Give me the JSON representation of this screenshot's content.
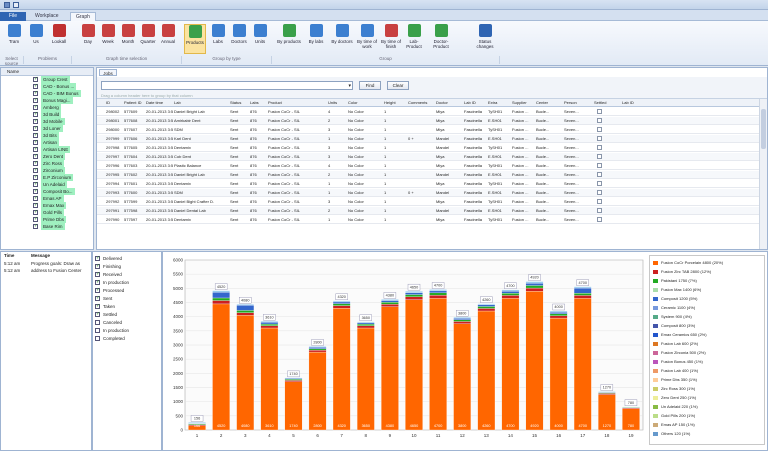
{
  "ribbon": {
    "tabs": [
      "File",
      "Workplace",
      "Graph"
    ],
    "buttons": [
      {
        "label": "Tram",
        "color": "#3c7fd0"
      },
      {
        "label": "Us",
        "color": "#3c7fd0"
      },
      {
        "label": "Lookall",
        "color": "#c03030"
      },
      {
        "label": "Day",
        "color": "#c84040"
      },
      {
        "label": "Week",
        "color": "#c84040"
      },
      {
        "label": "Month",
        "color": "#c84040"
      },
      {
        "label": "Quarter",
        "color": "#c84040"
      },
      {
        "label": "Annual",
        "color": "#c84040"
      },
      {
        "label": "Products",
        "color": "#3aa04a"
      },
      {
        "label": "Labs",
        "color": "#3c7fd0"
      },
      {
        "label": "Doctors",
        "color": "#3c7fd0"
      },
      {
        "label": "Units",
        "color": "#3c7fd0"
      },
      {
        "label": "By products",
        "color": "#3aa04a"
      },
      {
        "label": "By labs",
        "color": "#3c7fd0"
      },
      {
        "label": "By doctors",
        "color": "#3c7fd0"
      },
      {
        "label": "By time of work",
        "color": "#3c7fd0"
      },
      {
        "label": "By time of finish",
        "color": "#c84040"
      },
      {
        "label": "Lab-Product",
        "color": "#3aa04a"
      },
      {
        "label": "Doctor-Product",
        "color": "#3aa04a"
      },
      {
        "label": "Status changes",
        "color": "#2f65b3"
      }
    ],
    "groups": [
      "Select source",
      "Problems",
      "Graph time selection",
      "Group by type",
      "Group"
    ]
  },
  "tree": {
    "header": "Name",
    "items": [
      "Group Crest",
      "CAD - Bonus ...",
      "CAD - BIM Bonus",
      "Bonus Magi...",
      "Amberg",
      "3d Build",
      "3d Mobile",
      "3d Loner",
      "3d Bits",
      "Artisan",
      "Artisan LINE",
      "Zero Dent",
      "Zirc Ross",
      "Zirconium",
      "E.P Zirconium",
      "Un Adelaid",
      "Composit Bo...",
      "Emas AP",
      "Emax Max",
      "Gold Pills",
      "Prime Dbs",
      "Base Rim"
    ]
  },
  "jobs": {
    "tab": "Jobs",
    "select_placeholder": "",
    "find_label": "Find",
    "clear_label": "Clear",
    "hint": "Drag a column header here to group by that column",
    "columns": [
      "ID",
      "Patient ID",
      "Date time",
      "Lab",
      "Status",
      "Labs",
      "Product",
      "Units",
      "Color",
      "Height",
      "Comments",
      "Doctor",
      "Lab ID",
      "Extra",
      "Supplier",
      "Center",
      "Person",
      "Settled",
      "Lab ID"
    ],
    "rows": [
      [
        "298002",
        "577609",
        "20-01-2013 3:58:05 PM",
        "Daniel Bright Lab",
        "Sent",
        "876",
        "Fusion CoCr - SIL",
        "4",
        "No Color",
        "1",
        "",
        "Miya",
        "Fascinella",
        "TySH01",
        "Fusion ...",
        "Bucle...",
        "Seven..."
      ],
      [
        "298001",
        "577608",
        "20-01-2013 3:58:05 PM",
        "Amirkabir Dent",
        "Sent",
        "876",
        "Fusion CoCr - SIL",
        "2",
        "No Color",
        "1",
        "",
        "Miya",
        "Fascinella",
        "E.SH01",
        "Fusion ...",
        "Bucle...",
        "Seven..."
      ],
      [
        "298000",
        "577607",
        "20-01-2013 3:58:05 PM",
        "SDM",
        "Sent",
        "876",
        "Fusion CoCr - SIL",
        "3",
        "No Color",
        "1",
        "",
        "Miya",
        "Fascinella",
        "TySH01",
        "Fusion ...",
        "Bucle...",
        "Seven..."
      ],
      [
        "297999",
        "577606",
        "20-01-2013 3:58:05 PM",
        "Karl Dent",
        "Sent",
        "876",
        "Fusion CoCr - SIL",
        "1",
        "No Color",
        "1",
        "0 +",
        "Mandel",
        "Fascinella",
        "E.SH01",
        "Fusion ...",
        "Bucle...",
        "Seven..."
      ],
      [
        "297998",
        "577605",
        "20-01-2013 3:58:05 PM",
        "Dentamix",
        "Sent",
        "876",
        "Fusion CoCr - SIL",
        "3",
        "No Color",
        "1",
        "",
        "Mandel",
        "Fascinella",
        "TySH01",
        "Fusion ...",
        "Bucle...",
        "Seven..."
      ],
      [
        "297997",
        "577604",
        "20-01-2013 3:58:05 PM",
        "Cob Dent",
        "Sent",
        "876",
        "Fusion CoCr - SIL",
        "3",
        "No Color",
        "1",
        "",
        "Miya",
        "Fascinella",
        "E.SH01",
        "Fusion ...",
        "Bucle...",
        "Seven..."
      ],
      [
        "297996",
        "577603",
        "20-01-2013 3:58:05 PM",
        "Plastic Balance",
        "Sent",
        "876",
        "Fusion CoCr - SIL",
        "4",
        "No Color",
        "1",
        "",
        "Miya",
        "Fascinella",
        "TySH01",
        "Fusion ...",
        "Bucle...",
        "Seven..."
      ],
      [
        "297995",
        "577602",
        "20-01-2013 3:58:05 PM",
        "Daniel Bright Lab",
        "Sent",
        "876",
        "Fusion CoCr - SIL",
        "2",
        "No Color",
        "1",
        "",
        "Mandel",
        "Fascinella",
        "E.SH01",
        "Fusion ...",
        "Bucle...",
        "Seven..."
      ],
      [
        "297994",
        "577601",
        "20-01-2013 3:58:05 PM",
        "Dentamix",
        "Sent",
        "876",
        "Fusion CoCr - SIL",
        "1",
        "No Color",
        "1",
        "",
        "Miya",
        "Fascinella",
        "TySH01",
        "Fusion ...",
        "Bucle...",
        "Seven..."
      ],
      [
        "297993",
        "577600",
        "20-01-2013 3:58:05 PM",
        "SDM",
        "Sent",
        "876",
        "Fusion CoCr - SIL",
        "1",
        "No Color",
        "1",
        "0 +",
        "Mandel",
        "Fascinella",
        "E.SH01",
        "Fusion ...",
        "Bucle...",
        "Seven..."
      ],
      [
        "297992",
        "577599",
        "20-01-2013 3:58:05 PM",
        "Daniel Bight Crafter D.",
        "Sent",
        "876",
        "Fusion CoCr - SIL",
        "3",
        "No Color",
        "1",
        "",
        "Miya",
        "Fascinella",
        "TySH01",
        "Fusion ...",
        "Bucle...",
        "Seven..."
      ],
      [
        "297991",
        "577598",
        "20-01-2013 3:58:05 PM",
        "Daniel Dental Lab",
        "Sent",
        "876",
        "Fusion CoCr - SIL",
        "2",
        "No Color",
        "1",
        "",
        "Mandel",
        "Fascinella",
        "E.SH01",
        "Fusion ...",
        "Bucle...",
        "Seven..."
      ],
      [
        "297990",
        "577597",
        "20-01-2013 3:58:05 PM",
        "Dentamix",
        "Sent",
        "876",
        "Fusion CoCr - SIL",
        "1",
        "No Color",
        "1",
        "",
        "Miya",
        "Fascinella",
        "TySH01",
        "Fusion ...",
        "Bucle...",
        "Seven..."
      ]
    ]
  },
  "log": {
    "time_header": "Time",
    "message_header": "Message",
    "rows": [
      {
        "time": "5:12 am",
        "message": "Progress goals: Draw as"
      },
      {
        "time": "5:12 am",
        "message": "address to Fusion Center"
      }
    ]
  },
  "filters": [
    "Delivered",
    "Finishing",
    "Received",
    "In production",
    "Processed",
    "Sent",
    "Taken",
    "Settled",
    "Canceled",
    "In production",
    "Completed"
  ],
  "filters_checked": [
    true,
    true,
    true,
    true,
    true,
    true,
    true,
    true,
    false,
    false,
    false
  ],
  "chart_data": {
    "type": "bar",
    "stacked": true,
    "categories": [
      "1",
      "2",
      "3",
      "4",
      "5",
      "6",
      "7",
      "8",
      "9",
      "10",
      "11",
      "12",
      "13",
      "14",
      "15",
      "16",
      "17",
      "18",
      "19"
    ],
    "yticks": [
      "0",
      "500",
      "1000",
      "1500",
      "2000",
      "2500",
      "3000",
      "3500",
      "4000",
      "4500",
      "5000",
      "5500",
      "6000"
    ],
    "ylim": [
      0,
      6000
    ],
    "category_labels": [
      "156",
      "4520",
      "4080",
      "3610",
      "1740",
      "2800",
      "4320",
      "3650",
      "4380",
      "4650",
      "4700",
      "3800",
      "4260",
      "4700",
      "4920",
      "4000",
      "4700",
      "1270",
      "780"
    ],
    "series": [
      {
        "name": "Fusion CoCr Porcelain  4800 (20%)",
        "color": "#ff6600",
        "values": [
          150,
          4450,
          4050,
          3600,
          1700,
          2750,
          4300,
          3600,
          4350,
          4600,
          4650,
          3750,
          4200,
          4650,
          4900,
          3950,
          4650,
          1250,
          750
        ]
      },
      {
        "name": "Fusion Zirc TAB  2800 (12%)",
        "color": "#cc2020",
        "values": [
          40,
          120,
          90,
          80,
          50,
          70,
          90,
          80,
          90,
          100,
          110,
          80,
          90,
          100,
          110,
          80,
          100,
          40,
          30
        ]
      },
      {
        "name": "Pakistani  1750 (7%)",
        "color": "#22aa22",
        "values": [
          30,
          90,
          80,
          60,
          40,
          50,
          70,
          60,
          70,
          80,
          80,
          60,
          70,
          80,
          90,
          70,
          80,
          30,
          20
        ]
      },
      {
        "name": "Composit  1200 (5%)",
        "color": "#3366cc",
        "values": [
          20,
          200,
          180,
          60,
          30,
          50,
          60,
          50,
          60,
          70,
          70,
          50,
          60,
          70,
          80,
          60,
          180,
          20,
          10
        ]
      },
      {
        "name": "Others  900 (4%)",
        "color": "#99ccee",
        "values": [
          30,
          60,
          40,
          40,
          20,
          30,
          40,
          30,
          40,
          50,
          50,
          40,
          40,
          50,
          60,
          40,
          50,
          20,
          10
        ]
      }
    ],
    "legend": [
      {
        "name": "Fusion CoCr Porcelain  4800 (20%)",
        "color": "#ff6600"
      },
      {
        "name": "Fusion Zirc TAB  2800 (12%)",
        "color": "#cc2020"
      },
      {
        "name": "Pakistani  1750 (7%)",
        "color": "#22aa22"
      },
      {
        "name": "Fusion Max  1400 (6%)",
        "color": "#aaddaa"
      },
      {
        "name": "Composit  1200 (5%)",
        "color": "#3366cc"
      },
      {
        "name": "Ceramic  1100 (4%)",
        "color": "#7799dd"
      },
      {
        "name": "System  900 (4%)",
        "color": "#55aa88"
      },
      {
        "name": "Composit  800 (3%)",
        "color": "#4455aa"
      },
      {
        "name": "Emax Ceramics  650 (2%)",
        "color": "#2255cc"
      },
      {
        "name": "Fusion Lab  600 (2%)",
        "color": "#dd7722"
      },
      {
        "name": "Fusion Zirconia  500 (2%)",
        "color": "#cc6699"
      },
      {
        "name": "Fusion Bonus  450 (1%)",
        "color": "#bb55bb"
      },
      {
        "name": "Fusion Lab  400 (1%)",
        "color": "#ee9966"
      },
      {
        "name": "Prime Dbs  350 (1%)",
        "color": "#ffcc99"
      },
      {
        "name": "Zirc Ross  300 (1%)",
        "color": "#cccc66"
      },
      {
        "name": "Zero Dent  250 (1%)",
        "color": "#eeee99"
      },
      {
        "name": "Un Adelaid  220 (1%)",
        "color": "#88bb44"
      },
      {
        "name": "Gold Pills  200 (1%)",
        "color": "#bbdd88"
      },
      {
        "name": "Emas AP  150 (1%)",
        "color": "#ccaa77"
      },
      {
        "name": "Others  120 (1%)",
        "color": "#6699cc"
      }
    ]
  }
}
